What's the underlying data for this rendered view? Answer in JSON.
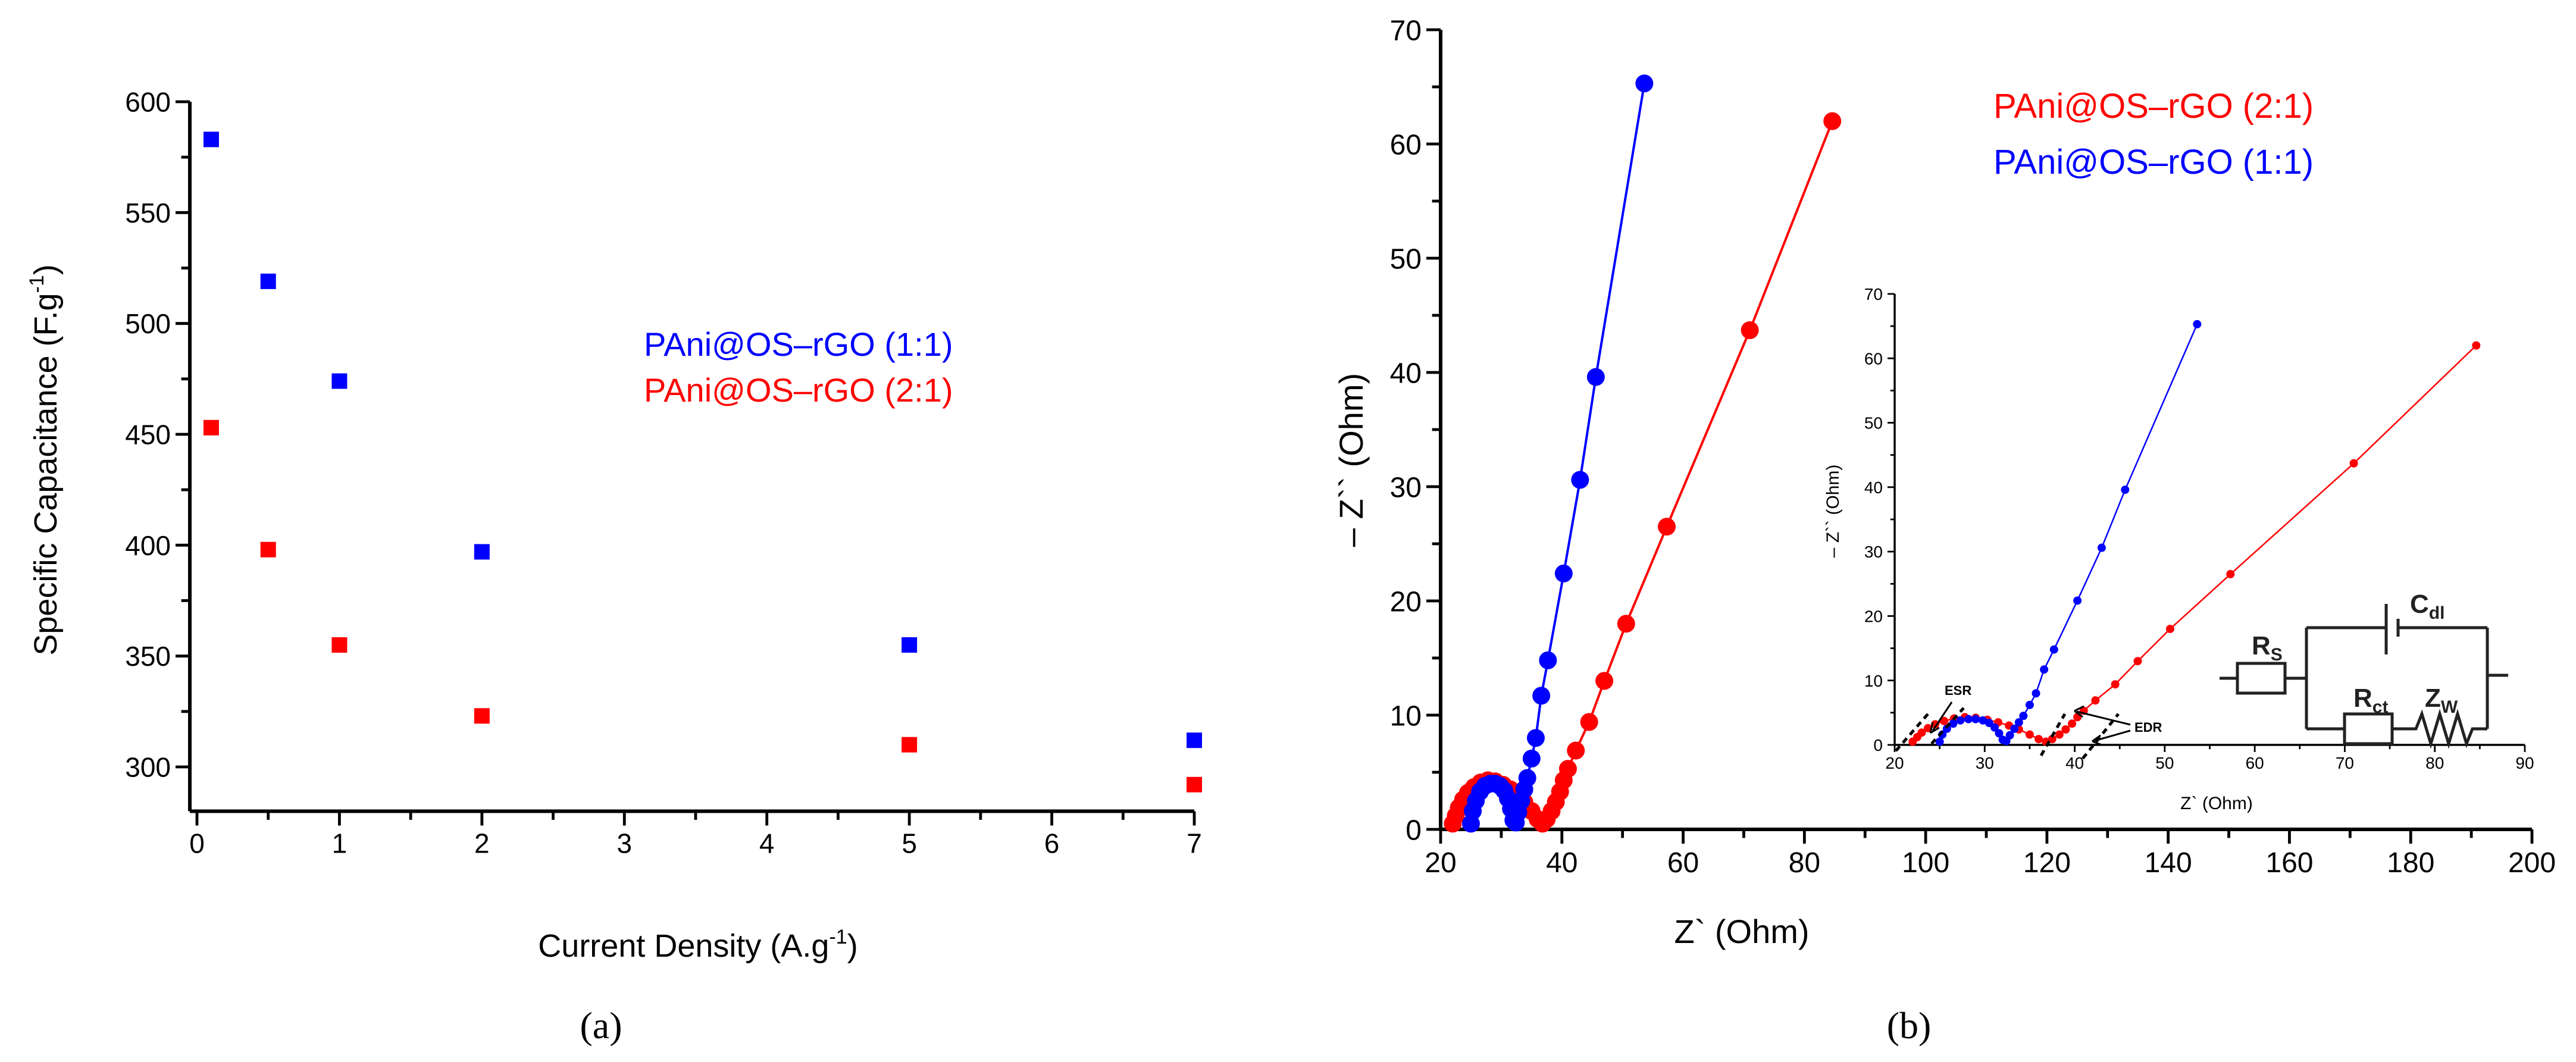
{
  "colors": {
    "blue": "#0000ff",
    "red": "#ff0000",
    "axis": "#000000"
  },
  "chart_data": [
    {
      "panel_label": "(a)",
      "type": "scatter",
      "xlabel": {
        "main": "Current Density (A.g",
        "sup": "-1",
        "end": ")"
      },
      "ylabel": {
        "main": "Specific Capacitance (F.g",
        "sup": "-1",
        "end": ")"
      },
      "xlim": [
        -0.05,
        7.0
      ],
      "ylim": [
        280,
        600
      ],
      "xticks": [
        0,
        1,
        2,
        3,
        4,
        5,
        6,
        7
      ],
      "yticks": [
        300,
        350,
        400,
        450,
        500,
        550,
        600
      ],
      "legend_position": "center-right",
      "series": [
        {
          "name": "PAni@OS–rGO (1:1)",
          "color": "#0000ff",
          "marker": "square",
          "x": [
            0.1,
            0.5,
            1,
            2,
            5,
            7
          ],
          "y": [
            583,
            519,
            474,
            397,
            355,
            312
          ]
        },
        {
          "name": "PAni@OS–rGO (2:1)",
          "color": "#ff0000",
          "marker": "square",
          "x": [
            0.1,
            0.5,
            1,
            2,
            5,
            7
          ],
          "y": [
            453,
            398,
            355,
            323,
            310,
            292
          ]
        }
      ]
    },
    {
      "panel_label": "(b)",
      "type": "line",
      "xlabel": "Z` (Ohm)",
      "ylabel": "– Z`` (Ohm)",
      "xlim": [
        20,
        200
      ],
      "ylim": [
        0,
        70
      ],
      "xticks": [
        20,
        40,
        60,
        80,
        100,
        120,
        140,
        160,
        180,
        200
      ],
      "yticks": [
        0,
        10,
        20,
        30,
        40,
        50,
        60,
        70
      ],
      "legend_position": "top-right",
      "series": [
        {
          "name": "PAni@OS–rGO (2:1)",
          "color": "#ff0000",
          "marker": "circle",
          "x": [
            22,
            22.5,
            23,
            23.7,
            24.5,
            25.5,
            26.6,
            27.8,
            29,
            30.3,
            31.5,
            32.7,
            33.8,
            35,
            36,
            36.8,
            37.5,
            38.3,
            39,
            39.7,
            40.3,
            41,
            42.3,
            44.5,
            47,
            50.6,
            57.3,
            71,
            84.6
          ],
          "y": [
            0.5,
            1.2,
            1.9,
            2.6,
            3.2,
            3.7,
            4.1,
            4.3,
            4.2,
            3.9,
            3.5,
            3.0,
            2.4,
            1.6,
            0.9,
            0.5,
            0.9,
            1.6,
            2.4,
            3.3,
            4.3,
            5.3,
            6.9,
            9.4,
            13,
            18,
            26.5,
            43.7,
            62
          ]
        },
        {
          "name": "PAni@OS–rGO (1:1)",
          "color": "#0000ff",
          "marker": "circle",
          "x": [
            25,
            25.3,
            25.8,
            26.5,
            27.3,
            28.2,
            29,
            29.8,
            30.5,
            31.1,
            31.6,
            32,
            32.4,
            32.8,
            33.3,
            33.8,
            34.3,
            35,
            35.7,
            36.6,
            37.7,
            40.3,
            43,
            45.6,
            53.6
          ],
          "y": [
            0.5,
            1.6,
            2.5,
            3.3,
            3.8,
            4.0,
            4.0,
            3.8,
            3.4,
            2.7,
            1.8,
            0.8,
            0.6,
            1.5,
            2.5,
            3.5,
            4.5,
            6.2,
            8,
            11.7,
            14.8,
            22.4,
            30.6,
            39.6,
            65.3
          ]
        }
      ],
      "inset": {
        "xlabel": "Z` (Ohm)",
        "ylabel": "– Z`` (Ohm)",
        "xlim": [
          20,
          90
        ],
        "ylim": [
          0,
          70
        ],
        "xticks": [
          20,
          30,
          40,
          50,
          60,
          70,
          80,
          90
        ],
        "yticks": [
          0,
          10,
          20,
          30,
          40,
          50,
          60,
          70
        ],
        "annotations": [
          "ESR",
          "EDR"
        ],
        "circuit": {
          "rs": {
            "main": "R",
            "sub": "S"
          },
          "rct": {
            "main": "R",
            "sub": "ct"
          },
          "zw": {
            "main": "Z",
            "sub": "W"
          },
          "cdl": {
            "main": "C",
            "sub": "dl"
          }
        }
      }
    }
  ]
}
